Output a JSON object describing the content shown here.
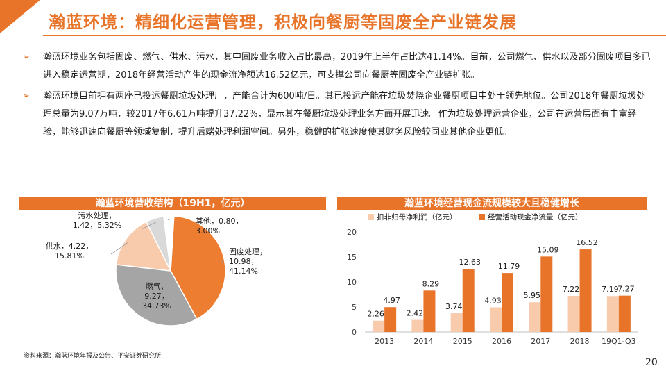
{
  "page": {
    "title": "瀚蓝环境：精细化运营管理，积极向餐厨等固废全产业链发展",
    "bullets": [
      "瀚蓝环境业务包括固废、燃气、供水、污水，其中固废业务收入占比最高，2019年上半年占比达41.14%。目前，公司燃气、供水以及部分固废项目多已进入稳定运营期，2018年经营活动产生的现金流净额达16.52亿元，可支撑公司向餐厨等固废全产业链扩张。",
      "瀚蓝环境目前拥有两座已投运餐厨垃圾处理厂，产能合计为600吨/日。其已投运产能在垃圾焚烧企业餐厨项目中处于领先地位。公司2018年餐厨垃圾处理总量为9.07万吨，较2017年6.61万吨提升37.22%，显示其在餐厨垃圾处理业务方面开展迅速。作为垃圾处理运营企业，公司在运营层面有丰富经验，能够迅速向餐厨等领域复制，提升后端处理利润空间。另外，稳健的扩张速度使其财务风险较同业其他企业更低。"
    ],
    "source": "资料来源：瀚蓝环境年报及公告、平安证券研究所",
    "page_number": "20",
    "accent_color": "#e8742a",
    "bullet_icon": "arrow-right-icon"
  },
  "chart_data": [
    {
      "type": "pie",
      "title": "瀚蓝环境营收结构（19H1，亿元）",
      "slices": [
        {
          "name": "固废处理",
          "value": 10.98,
          "percent": "41.14%",
          "label_lines": [
            "固废处理，",
            "10.98，",
            "41.14%"
          ],
          "color": "#ed7d31"
        },
        {
          "name": "燃气",
          "value": 9.27,
          "percent": "34.73%",
          "label_lines": [
            "燃气，",
            "9.27，",
            "34.73%"
          ],
          "color": "#a5a5a5"
        },
        {
          "name": "供水",
          "value": 4.22,
          "percent": "15.81%",
          "label_lines": [
            "供水，4.22，",
            "15.81%"
          ],
          "color": "#f8cbad"
        },
        {
          "name": "污水处理",
          "value": 1.42,
          "percent": "5.32%",
          "label_lines": [
            "污水处理，",
            "1.42，5.32%"
          ],
          "color": "#d9d9d9"
        },
        {
          "name": "其他",
          "value": 0.8,
          "percent": "3.00%",
          "label_lines": [
            "其他，0.80，",
            "3.00%"
          ],
          "color": "#ffffff"
        }
      ]
    },
    {
      "type": "bar",
      "title": "瀚蓝环境经营现金流规模较大且稳健增长",
      "categories": [
        "2013",
        "2014",
        "2015",
        "2016",
        "2017",
        "2018",
        "19Q1-Q3"
      ],
      "series": [
        {
          "name": "扣非归母净利润（亿元）",
          "values": [
            2.26,
            2.42,
            3.74,
            4.93,
            5.95,
            7.22,
            7.19
          ],
          "color": "#f8cbad"
        },
        {
          "name": "经营活动现金净流量（亿元）",
          "values": [
            4.97,
            8.29,
            12.63,
            11.79,
            15.09,
            16.52,
            7.27
          ],
          "color": "#e8742a"
        }
      ],
      "value_labels": [
        [
          "2.26",
          "2.42",
          "3.74",
          "4.93",
          "5.95",
          "7.22",
          "7.19"
        ],
        [
          "4.97",
          "8.29",
          "12.63",
          "11.79",
          "15.09",
          "16.52",
          "7.27"
        ]
      ],
      "ylim": [
        0,
        20
      ],
      "yticks": [
        "0",
        "5",
        "10",
        "15",
        "20"
      ],
      "grid": false,
      "legend_position": "top-left"
    }
  ]
}
